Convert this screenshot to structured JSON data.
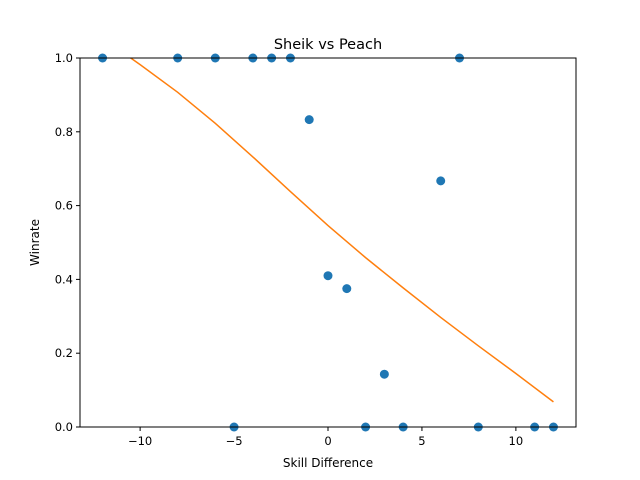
{
  "chart_data": {
    "type": "scatter",
    "title": "Sheik vs Peach",
    "xlabel": "Skill Difference",
    "ylabel": "Winrate",
    "xlim": [
      -13.2,
      13.2
    ],
    "ylim": [
      0.0,
      1.0
    ],
    "xticks": [
      -10,
      -5,
      0,
      5,
      10
    ],
    "xtick_labels": [
      "−10",
      "−5",
      "0",
      "5",
      "10"
    ],
    "yticks": [
      0.0,
      0.2,
      0.4,
      0.6,
      0.8,
      1.0
    ],
    "ytick_labels": [
      "0.0",
      "0.2",
      "0.4",
      "0.6",
      "0.8",
      "1.0"
    ],
    "grid": false,
    "series": [
      {
        "kind": "scatter",
        "color": "#1f77b4",
        "x": [
          -12,
          -8,
          -6,
          -5,
          -4,
          -3,
          -2,
          -1,
          0,
          1,
          2,
          3,
          4,
          6,
          7,
          8,
          11,
          12
        ],
        "y": [
          1.0,
          1.0,
          1.0,
          0.0,
          1.0,
          1.0,
          1.0,
          0.833,
          0.41,
          0.375,
          0.0,
          0.143,
          0.0,
          0.667,
          1.0,
          0.0,
          0.0,
          0.0
        ]
      },
      {
        "kind": "line",
        "color": "#ff7f0e",
        "x": [
          -12,
          -10.5,
          -10,
          -8,
          -6,
          -4,
          -2,
          0,
          2,
          4,
          6,
          8,
          10,
          12
        ],
        "y": [
          1.06,
          1.0,
          0.982,
          0.907,
          0.823,
          0.732,
          0.638,
          0.546,
          0.459,
          0.377,
          0.297,
          0.22,
          0.145,
          0.068
        ]
      }
    ]
  }
}
